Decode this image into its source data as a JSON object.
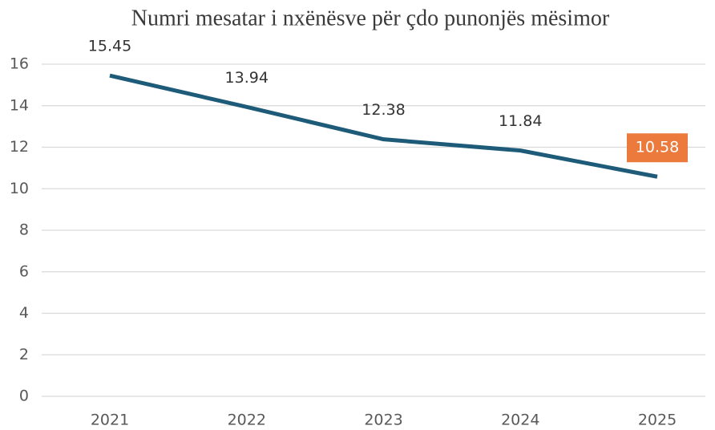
{
  "chart_data": {
    "type": "line",
    "title": "Numri mesatar i nxënësve për çdo punonjës mësimor",
    "categories": [
      "2021",
      "2022",
      "2023",
      "2024",
      "2025"
    ],
    "series": [
      {
        "name": "Numri mesatar",
        "color": "#1d5b79",
        "values": [
          15.45,
          13.94,
          12.38,
          11.84,
          10.58
        ]
      }
    ],
    "ylim": [
      0,
      16
    ],
    "yticks": [
      0,
      2,
      4,
      6,
      8,
      10,
      12,
      14,
      16
    ],
    "grid": true,
    "highlight": {
      "index": 4,
      "color": "#ec7a3c"
    }
  }
}
